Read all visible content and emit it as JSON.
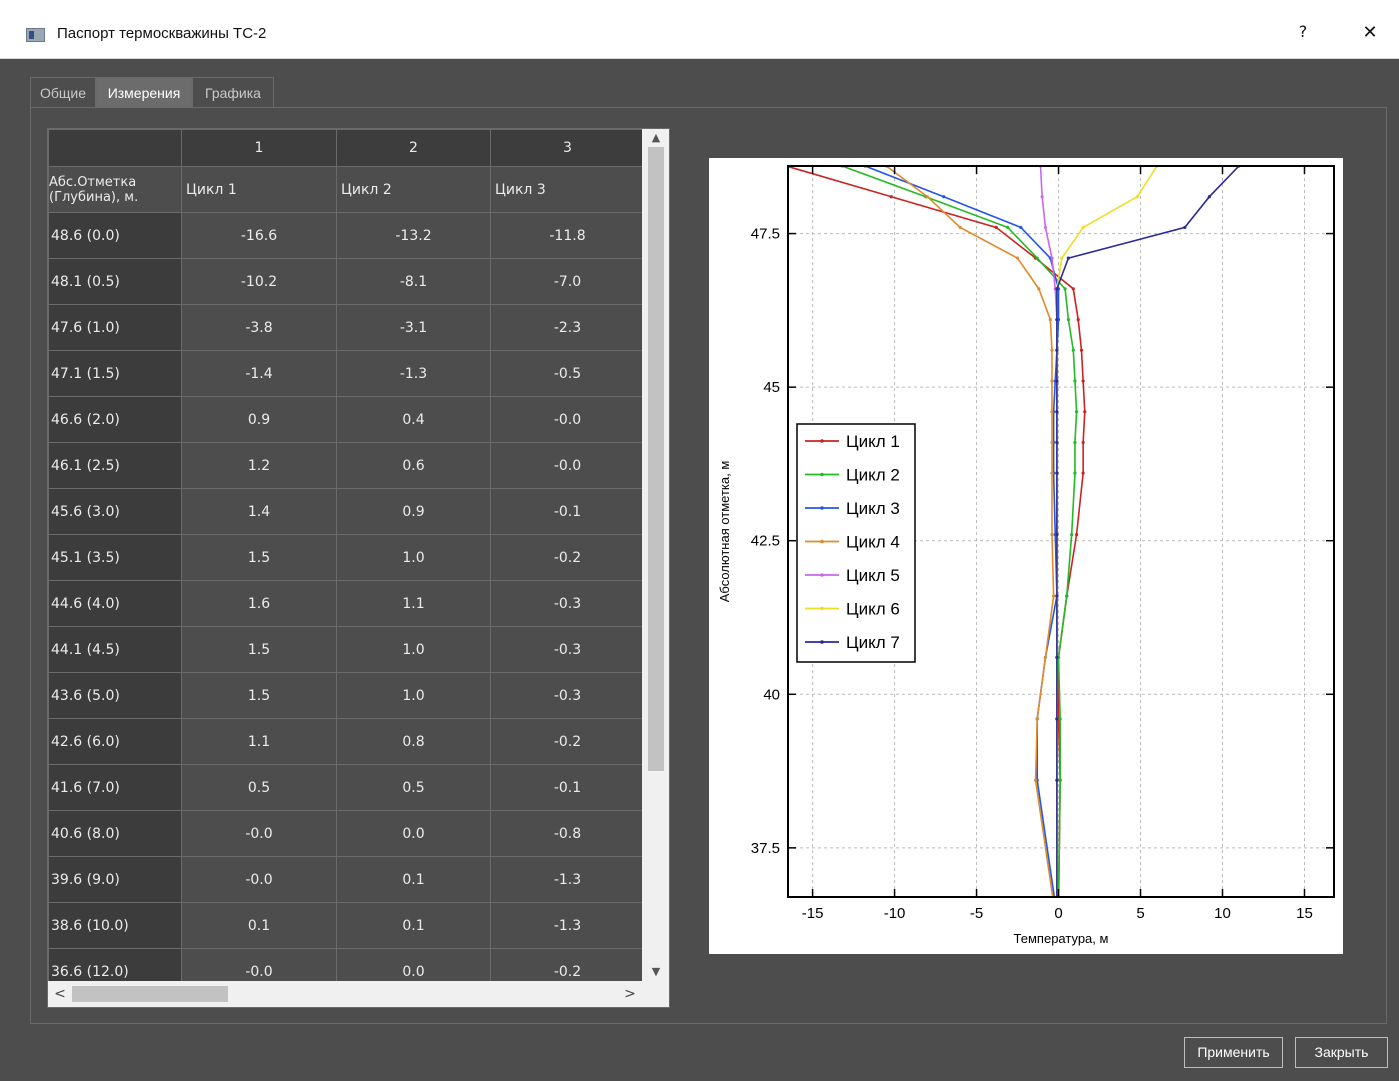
{
  "window": {
    "title": "Паспорт термоскважины ТС-2",
    "help_label": "?",
    "close_label": "✕"
  },
  "tabs": [
    {
      "label": "Общие",
      "active": false
    },
    {
      "label": "Измерения",
      "active": true
    },
    {
      "label": "Графика",
      "active": false
    }
  ],
  "table": {
    "corner": "",
    "column_numbers": [
      "1",
      "2",
      "3"
    ],
    "depth_header": "Абс.Отметка (Глубина), м.",
    "cycle_headers": [
      "Цикл 1",
      "Цикл 2",
      "Цикл 3"
    ],
    "rows": [
      {
        "label": "48.6 (0.0)",
        "values": [
          "-16.6",
          "-13.2",
          "-11.8"
        ]
      },
      {
        "label": "48.1 (0.5)",
        "values": [
          "-10.2",
          "-8.1",
          "-7.0"
        ]
      },
      {
        "label": "47.6 (1.0)",
        "values": [
          "-3.8",
          "-3.1",
          "-2.3"
        ]
      },
      {
        "label": "47.1 (1.5)",
        "values": [
          "-1.4",
          "-1.3",
          "-0.5"
        ]
      },
      {
        "label": "46.6 (2.0)",
        "values": [
          "0.9",
          "0.4",
          "-0.0"
        ]
      },
      {
        "label": "46.1 (2.5)",
        "values": [
          "1.2",
          "0.6",
          "-0.0"
        ]
      },
      {
        "label": "45.6 (3.0)",
        "values": [
          "1.4",
          "0.9",
          "-0.1"
        ]
      },
      {
        "label": "45.1 (3.5)",
        "values": [
          "1.5",
          "1.0",
          "-0.2"
        ]
      },
      {
        "label": "44.6 (4.0)",
        "values": [
          "1.6",
          "1.1",
          "-0.3"
        ]
      },
      {
        "label": "44.1 (4.5)",
        "values": [
          "1.5",
          "1.0",
          "-0.3"
        ]
      },
      {
        "label": "43.6 (5.0)",
        "values": [
          "1.5",
          "1.0",
          "-0.3"
        ]
      },
      {
        "label": "42.6 (6.0)",
        "values": [
          "1.1",
          "0.8",
          "-0.2"
        ]
      },
      {
        "label": "41.6 (7.0)",
        "values": [
          "0.5",
          "0.5",
          "-0.1"
        ]
      },
      {
        "label": "40.6 (8.0)",
        "values": [
          "-0.0",
          "0.0",
          "-0.8"
        ]
      },
      {
        "label": "39.6 (9.0)",
        "values": [
          "-0.0",
          "0.1",
          "-1.3"
        ]
      },
      {
        "label": "38.6 (10.0)",
        "values": [
          "0.1",
          "0.1",
          "-1.3"
        ]
      },
      {
        "label": "36.6 (12.0)",
        "values": [
          "-0.0",
          "0.0",
          "-0.2"
        ]
      }
    ],
    "scroll_up": "▲",
    "scroll_down": "▼",
    "scroll_left": "<",
    "scroll_right": ">"
  },
  "buttons": {
    "apply": "Применить",
    "close": "Закрыть"
  },
  "chart_data": {
    "type": "line",
    "title": "",
    "xlabel": "Температура, м",
    "ylabel": "Абсолютная отметка, м",
    "xlim": [
      -16.5,
      16.8
    ],
    "ylim": [
      36.7,
      48.6
    ],
    "xticks": [
      -15,
      -10,
      -5,
      0,
      5,
      10,
      15
    ],
    "yticks": [
      37.5,
      40,
      42.5,
      45,
      47.5
    ],
    "grid": true,
    "legend_position": "left-center",
    "series": [
      {
        "name": "Цикл 1",
        "color": "#cc2222",
        "x": [
          -16.6,
          -10.2,
          -3.8,
          -1.4,
          0.9,
          1.2,
          1.4,
          1.5,
          1.6,
          1.5,
          1.5,
          1.1,
          0.5,
          -0.0,
          -0.0,
          0.1,
          -0.0
        ],
        "y": [
          48.6,
          48.1,
          47.6,
          47.1,
          46.6,
          46.1,
          45.6,
          45.1,
          44.6,
          44.1,
          43.6,
          42.6,
          41.6,
          40.6,
          39.6,
          38.6,
          36.6
        ]
      },
      {
        "name": "Цикл 2",
        "color": "#22bb22",
        "x": [
          -13.2,
          -8.1,
          -3.1,
          -1.3,
          0.4,
          0.6,
          0.9,
          1.0,
          1.1,
          1.0,
          1.0,
          0.8,
          0.5,
          0.0,
          0.1,
          0.1,
          0.0
        ],
        "y": [
          48.6,
          48.1,
          47.6,
          47.1,
          46.6,
          46.1,
          45.6,
          45.1,
          44.6,
          44.1,
          43.6,
          42.6,
          41.6,
          40.6,
          39.6,
          38.6,
          36.6
        ]
      },
      {
        "name": "Цикл 3",
        "color": "#2255ee",
        "x": [
          -11.8,
          -7.0,
          -2.3,
          -0.5,
          -0.0,
          -0.0,
          -0.1,
          -0.2,
          -0.3,
          -0.3,
          -0.3,
          -0.2,
          -0.1,
          -0.8,
          -1.3,
          -1.3,
          -0.2
        ],
        "y": [
          48.6,
          48.1,
          47.6,
          47.1,
          46.6,
          46.1,
          45.6,
          45.1,
          44.6,
          44.1,
          43.6,
          42.6,
          41.6,
          40.6,
          39.6,
          38.6,
          36.6
        ]
      },
      {
        "name": "Цикл 4",
        "color": "#e08a2a",
        "x": [
          -10.5,
          -8.0,
          -6.0,
          -2.5,
          -1.2,
          -0.5,
          -0.4,
          -0.4,
          -0.4,
          -0.4,
          -0.4,
          -0.4,
          -0.3,
          -0.8,
          -1.3,
          -1.4,
          -0.3
        ],
        "y": [
          48.6,
          48.1,
          47.6,
          47.1,
          46.6,
          46.1,
          45.6,
          45.1,
          44.6,
          44.1,
          43.6,
          42.6,
          41.6,
          40.6,
          39.6,
          38.6,
          36.6
        ]
      },
      {
        "name": "Цикл 5",
        "color": "#cc66ee",
        "x": [
          -1.1,
          -1.0,
          -0.8,
          -0.4,
          -0.2,
          -0.1,
          -0.1,
          -0.1,
          -0.1,
          -0.1,
          -0.1,
          -0.1,
          -0.1,
          -0.1,
          -0.1,
          -0.1,
          -0.1
        ],
        "y": [
          48.6,
          48.1,
          47.6,
          47.1,
          46.6,
          46.1,
          45.6,
          45.1,
          44.6,
          44.1,
          43.6,
          42.6,
          41.6,
          40.6,
          39.6,
          38.6,
          36.6
        ]
      },
      {
        "name": "Цикл 6",
        "color": "#eedd22",
        "x": [
          6.0,
          4.8,
          1.5,
          0.2,
          -0.1,
          -0.1,
          -0.1,
          -0.1,
          -0.1,
          -0.1,
          -0.1,
          -0.1,
          -0.1,
          -0.1,
          -0.1,
          -0.1,
          -0.1
        ],
        "y": [
          48.6,
          48.1,
          47.6,
          47.1,
          46.6,
          46.1,
          45.6,
          45.1,
          44.6,
          44.1,
          43.6,
          42.6,
          41.6,
          40.6,
          39.6,
          38.6,
          36.6
        ]
      },
      {
        "name": "Цикл 7",
        "color": "#2a2a99",
        "x": [
          11.0,
          9.2,
          7.7,
          0.6,
          -0.1,
          -0.1,
          -0.1,
          -0.1,
          -0.1,
          -0.1,
          -0.1,
          -0.1,
          -0.1,
          -0.1,
          -0.1,
          -0.1,
          -0.1
        ],
        "y": [
          48.6,
          48.1,
          47.6,
          47.1,
          46.6,
          46.1,
          45.6,
          45.1,
          44.6,
          44.1,
          43.6,
          42.6,
          41.6,
          40.6,
          39.6,
          38.6,
          36.6
        ]
      }
    ]
  }
}
